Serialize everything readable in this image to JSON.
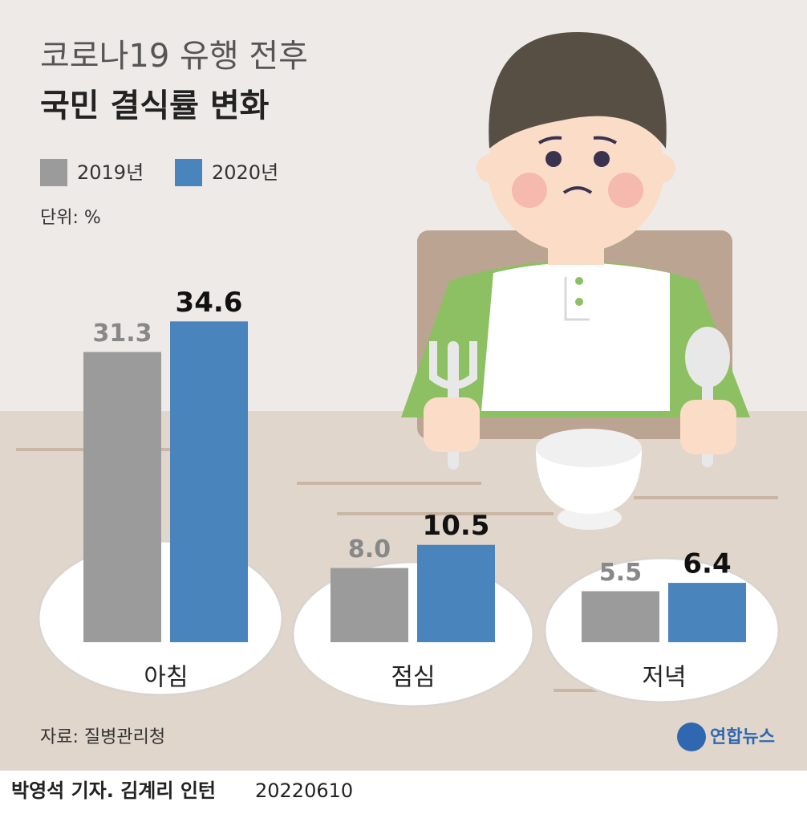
{
  "chart_data": {
    "type": "bar",
    "title": "코로나19 유행 전후",
    "subtitle": "국민 결식률 변화",
    "unit_label": "단위: %",
    "categories": [
      "아침",
      "점심",
      "저녁"
    ],
    "series": [
      {
        "name": "2019년",
        "color": "#9b9b9b",
        "values": [
          31.3,
          8.0,
          5.5
        ],
        "value_labels": [
          "31.3",
          "8.0",
          "5.5"
        ]
      },
      {
        "name": "2020년",
        "color": "#4a84bd",
        "values": [
          34.6,
          10.5,
          6.4
        ],
        "value_labels": [
          "34.6",
          "10.5",
          "6.4"
        ]
      }
    ],
    "source": "자료: 질병관리청",
    "logo": "연합뉴스",
    "credit": "박영석 기자. 김계리 인턴",
    "date": "20220610"
  }
}
